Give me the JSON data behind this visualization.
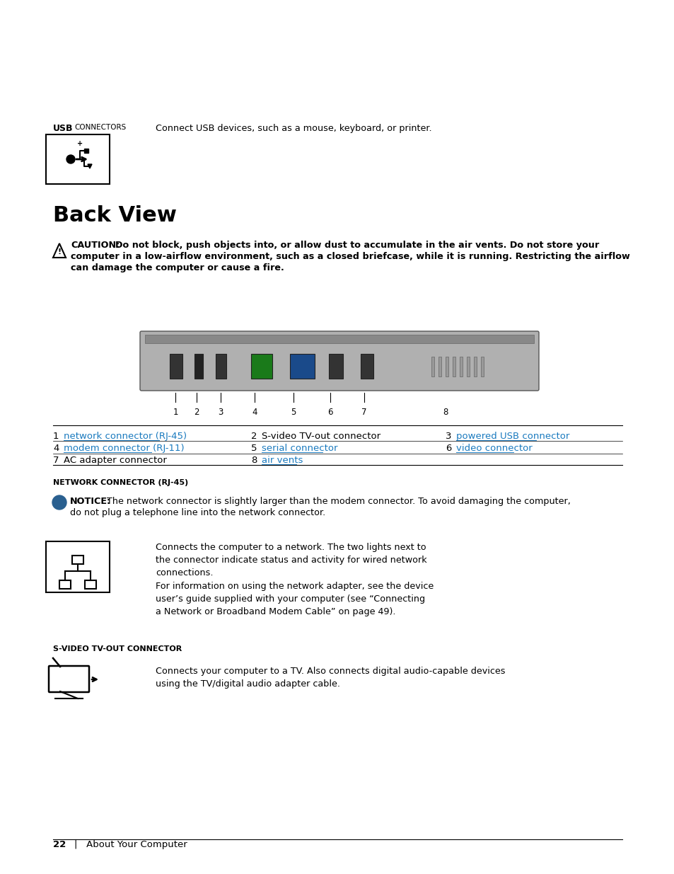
{
  "title": "Back View",
  "usb_section_header": "USB CONNECTORS",
  "usb_text": "Connect USB devices, such as a mouse, keyboard, or printer.",
  "back_view_title": "Back View",
  "caution_label": "CAUTION:",
  "caution_text": " Do not block, push objects into, or allow dust to accumulate in the air vents. Do not store your\ncomputer in a low-airflow environment, such as a closed briefcase, while it is running. Restricting the airflow\ncan damage the computer or cause a fire.",
  "table_items": [
    {
      "num": "1",
      "label": "network connector (RJ-45)",
      "link": true,
      "col": 0
    },
    {
      "num": "2",
      "label": "S-video TV-out connector",
      "link": false,
      "col": 1
    },
    {
      "num": "3",
      "label": "powered USB connector",
      "link": true,
      "col": 2
    },
    {
      "num": "4",
      "label": "modem connector (RJ-11)",
      "link": true,
      "col": 0
    },
    {
      "num": "5",
      "label": "serial connector",
      "link": true,
      "col": 1
    },
    {
      "num": "6",
      "label": "video connector",
      "link": true,
      "col": 2
    },
    {
      "num": "7",
      "label": "AC adapter connector",
      "link": false,
      "col": 0
    },
    {
      "num": "8",
      "label": "air vents",
      "link": true,
      "col": 1
    }
  ],
  "network_header": "NETWORK CONNECTOR (RJ-45)",
  "notice_label": "NOTICE:",
  "notice_text": " The network connector is slightly larger than the modem connector. To avoid damaging the computer,\ndo not plug a telephone line into the network connector.",
  "network_text_1": "Connects the computer to a network. The two lights next to\nthe connector indicate status and activity for wired network\nconnections.",
  "network_text_2": "For information on using the network adapter, see the device\nuser’s guide supplied with your computer (see “Connecting\na Network or Broadband Modem Cable” on page 49).",
  "svideo_header": "S-VIDEO TV-OUT CONNECTOR",
  "svideo_text": "Connects your computer to a TV. Also connects digital audio-capable devices\nusing the TV/digital audio adapter cable.",
  "footer_page": "22",
  "footer_text": "About Your Computer",
  "link_color": "#1a7abf",
  "header_color": "#1a7abf",
  "bg_color": "#ffffff",
  "text_color": "#000000",
  "body_fontsize": 9.5,
  "small_fontsize": 8.5
}
